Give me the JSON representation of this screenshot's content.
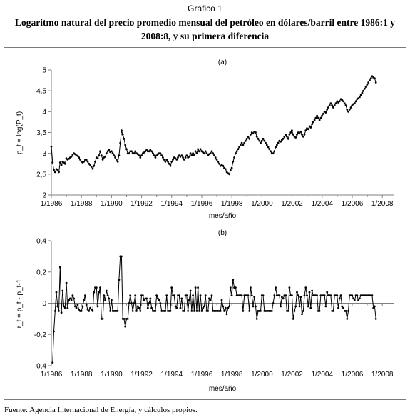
{
  "figure_label": "Gráfico 1",
  "title_line1": "Logaritmo natural del precio promedio mensual del petróleo en dólares/barril entre 1986:1 y",
  "title_line2": "2008:8, y su primera diferencia",
  "source": "Fuente: Agencia Internacional de Energía, y cálculos propios.",
  "colors": {
    "line": "#000000",
    "frame": "#7a7a7a",
    "axis": "#808080"
  },
  "chart_data": [
    {
      "type": "line",
      "panel_label": "(a)",
      "xlabel": "mes/año",
      "ylabel": "p_t = log(P_t)",
      "ylim": [
        2,
        5
      ],
      "yticks": [
        2,
        2.5,
        3,
        3.5,
        4,
        4.5,
        5
      ],
      "ytick_labels": [
        "2",
        "2,5",
        "3",
        "3,5",
        "4",
        "4,5",
        "5"
      ],
      "xlim": [
        1986.0,
        2008.75
      ],
      "xticks": [
        1986,
        1988,
        1990,
        1992,
        1994,
        1996,
        1998,
        2000,
        2002,
        2004,
        2006,
        2008
      ],
      "xtick_labels": [
        "1/1986",
        "1/1988",
        "1/1990",
        "1/1992",
        "1/1994",
        "1/1996",
        "1/1998",
        "1/2000",
        "1/2002",
        "1/2004",
        "1/2006",
        "1/2008"
      ],
      "markers": true,
      "x_start": 1986.0,
      "x_step": 0.0833,
      "values": [
        3.16,
        2.78,
        2.6,
        2.55,
        2.62,
        2.6,
        2.55,
        2.78,
        2.72,
        2.8,
        2.78,
        2.75,
        2.88,
        2.85,
        2.87,
        2.9,
        2.92,
        2.97,
        3.0,
        2.98,
        2.95,
        2.94,
        2.9,
        2.85,
        2.8,
        2.78,
        2.8,
        2.85,
        2.84,
        2.8,
        2.75,
        2.72,
        2.68,
        2.63,
        2.7,
        2.8,
        2.9,
        2.88,
        2.95,
        3.05,
        2.95,
        2.85,
        2.9,
        2.92,
        3.0,
        3.05,
        3.08,
        3.03,
        3.05,
        3.0,
        2.95,
        2.9,
        2.85,
        2.8,
        2.95,
        3.25,
        3.55,
        3.45,
        3.35,
        3.2,
        3.1,
        3.0,
        3.0,
        3.05,
        3.05,
        3.0,
        3.0,
        3.05,
        3.0,
        2.98,
        2.95,
        2.9,
        2.95,
        3.0,
        3.02,
        3.05,
        3.08,
        3.05,
        3.05,
        3.08,
        3.05,
        3.0,
        2.95,
        2.9,
        2.95,
        2.98,
        3.0,
        3.0,
        2.95,
        2.9,
        2.85,
        2.8,
        2.85,
        2.8,
        2.75,
        2.7,
        2.8,
        2.85,
        2.9,
        2.88,
        2.85,
        2.9,
        2.95,
        2.92,
        2.95,
        2.9,
        2.85,
        2.9,
        2.95,
        2.9,
        2.92,
        3.0,
        2.95,
        3.0,
        2.95,
        3.05,
        3.0,
        3.1,
        3.05,
        3.1,
        3.05,
        3.02,
        3.0,
        3.05,
        3.0,
        2.95,
        2.98,
        3.0,
        3.05,
        3.0,
        2.95,
        2.9,
        2.85,
        2.8,
        2.75,
        2.7,
        2.72,
        2.7,
        2.65,
        2.62,
        2.55,
        2.52,
        2.5,
        2.6,
        2.65,
        2.8,
        2.9,
        3.0,
        3.05,
        3.1,
        3.15,
        3.2,
        3.25,
        3.2,
        3.25,
        3.3,
        3.35,
        3.4,
        3.35,
        3.45,
        3.5,
        3.48,
        3.52,
        3.5,
        3.4,
        3.35,
        3.3,
        3.25,
        3.3,
        3.35,
        3.3,
        3.25,
        3.2,
        3.15,
        3.1,
        3.05,
        3.0,
        3.0,
        3.05,
        3.15,
        3.2,
        3.25,
        3.3,
        3.28,
        3.32,
        3.35,
        3.4,
        3.45,
        3.4,
        3.35,
        3.45,
        3.5,
        3.55,
        3.45,
        3.4,
        3.38,
        3.45,
        3.5,
        3.48,
        3.52,
        3.45,
        3.4,
        3.45,
        3.55,
        3.6,
        3.58,
        3.65,
        3.62,
        3.7,
        3.75,
        3.8,
        3.85,
        3.9,
        3.85,
        3.8,
        3.85,
        3.9,
        3.95,
        4.0,
        3.98,
        4.05,
        4.1,
        4.15,
        4.2,
        4.15,
        4.1,
        4.15,
        4.2,
        4.25,
        4.22,
        4.25,
        4.3,
        4.28,
        4.25,
        4.2,
        4.15,
        4.05,
        4.0,
        4.05,
        4.1,
        4.15,
        4.18,
        4.2,
        4.25,
        4.3,
        4.32,
        4.35,
        4.4,
        4.45,
        4.5,
        4.55,
        4.6,
        4.65,
        4.7,
        4.75,
        4.8,
        4.85,
        4.82,
        4.8,
        4.7
      ]
    },
    {
      "type": "line",
      "panel_label": "(b)",
      "xlabel": "mes/año",
      "ylabel": "r_t = p_t - p_t-1",
      "ylim": [
        -0.4,
        0.4
      ],
      "yticks": [
        -0.4,
        -0.2,
        0,
        0.2,
        0.4
      ],
      "ytick_labels": [
        "-0,4",
        "-0,2",
        "0",
        "0,2",
        "0,4"
      ],
      "xlim": [
        1986.0,
        2008.75
      ],
      "xticks": [
        1986,
        1988,
        1990,
        1992,
        1994,
        1996,
        1998,
        2000,
        2002,
        2004,
        2006,
        2008
      ],
      "xtick_labels": [
        "1/1986",
        "1/1988",
        "1/1990",
        "1/1992",
        "1/1994",
        "1/1996",
        "1/1998",
        "1/2000",
        "1/2002",
        "1/2004",
        "1/2006",
        "1/2008"
      ],
      "markers": true,
      "x_start": 1986.083,
      "x_step": 0.0833,
      "values": [
        -0.38,
        -0.18,
        -0.05,
        0.07,
        -0.02,
        -0.05,
        0.23,
        -0.06,
        0.08,
        -0.02,
        -0.03,
        0.13,
        -0.03,
        0.02,
        0.03,
        0.02,
        0.05,
        0.03,
        -0.02,
        -0.03,
        -0.01,
        -0.04,
        -0.05,
        -0.05,
        -0.02,
        0.02,
        0.05,
        -0.01,
        -0.04,
        -0.05,
        -0.03,
        -0.04,
        -0.05,
        0.07,
        0.1,
        0.1,
        -0.02,
        0.07,
        0.1,
        -0.1,
        -0.1,
        0.05,
        0.02,
        0.08,
        0.05,
        0.03,
        -0.05,
        0.02,
        -0.05,
        -0.05,
        -0.05,
        -0.05,
        -0.05,
        0.15,
        0.3,
        0.3,
        -0.1,
        -0.1,
        -0.15,
        -0.1,
        -0.1,
        0.0,
        0.05,
        0.0,
        -0.05,
        0.0,
        0.05,
        -0.05,
        -0.02,
        -0.03,
        -0.05,
        0.05,
        0.05,
        0.02,
        0.03,
        0.03,
        -0.03,
        0.0,
        0.03,
        -0.03,
        -0.05,
        -0.05,
        -0.05,
        0.05,
        0.03,
        0.02,
        0.0,
        -0.05,
        -0.05,
        -0.05,
        -0.05,
        0.05,
        -0.05,
        -0.05,
        -0.05,
        0.1,
        0.05,
        0.05,
        -0.02,
        -0.03,
        0.05,
        0.05,
        -0.03,
        0.03,
        -0.05,
        -0.05,
        0.05,
        0.05,
        -0.05,
        0.02,
        0.08,
        -0.05,
        0.05,
        -0.05,
        0.1,
        -0.05,
        0.1,
        -0.05,
        0.05,
        -0.05,
        -0.03,
        -0.02,
        0.05,
        -0.05,
        -0.05,
        0.03,
        0.02,
        0.05,
        -0.05,
        -0.05,
        -0.05,
        -0.05,
        -0.05,
        -0.05,
        -0.05,
        0.02,
        -0.02,
        -0.05,
        -0.03,
        -0.07,
        -0.03,
        -0.02,
        0.1,
        0.05,
        0.15,
        0.1,
        0.1,
        0.05,
        0.05,
        0.05,
        0.05,
        0.05,
        -0.05,
        0.05,
        0.05,
        0.05,
        0.05,
        -0.05,
        0.1,
        0.05,
        -0.02,
        0.04,
        -0.02,
        -0.1,
        -0.05,
        -0.05,
        -0.05,
        0.05,
        0.05,
        -0.05,
        -0.05,
        -0.05,
        -0.05,
        -0.05,
        -0.05,
        -0.05,
        0.0,
        0.05,
        0.1,
        0.05,
        0.05,
        0.05,
        -0.02,
        0.04,
        0.03,
        0.05,
        0.05,
        -0.05,
        -0.05,
        0.1,
        0.05,
        0.05,
        -0.1,
        -0.05,
        -0.02,
        0.07,
        0.05,
        -0.02,
        0.04,
        -0.07,
        -0.05,
        0.05,
        0.1,
        0.05,
        -0.02,
        0.07,
        -0.03,
        0.08,
        0.05,
        0.05,
        0.05,
        0.05,
        -0.05,
        -0.05,
        0.05,
        0.05,
        0.05,
        0.05,
        -0.02,
        0.07,
        0.05,
        0.05,
        0.05,
        -0.05,
        -0.05,
        0.05,
        0.05,
        0.05,
        -0.03,
        0.03,
        0.05,
        -0.02,
        -0.03,
        -0.05,
        -0.05,
        -0.1,
        -0.05,
        0.05,
        0.05,
        0.05,
        0.03,
        0.02,
        0.05,
        0.05,
        0.02,
        0.03,
        0.05,
        0.05,
        0.05,
        0.05,
        0.05,
        0.05,
        0.05,
        0.05,
        0.05,
        0.05,
        -0.03,
        -0.02,
        -0.1
      ]
    }
  ]
}
